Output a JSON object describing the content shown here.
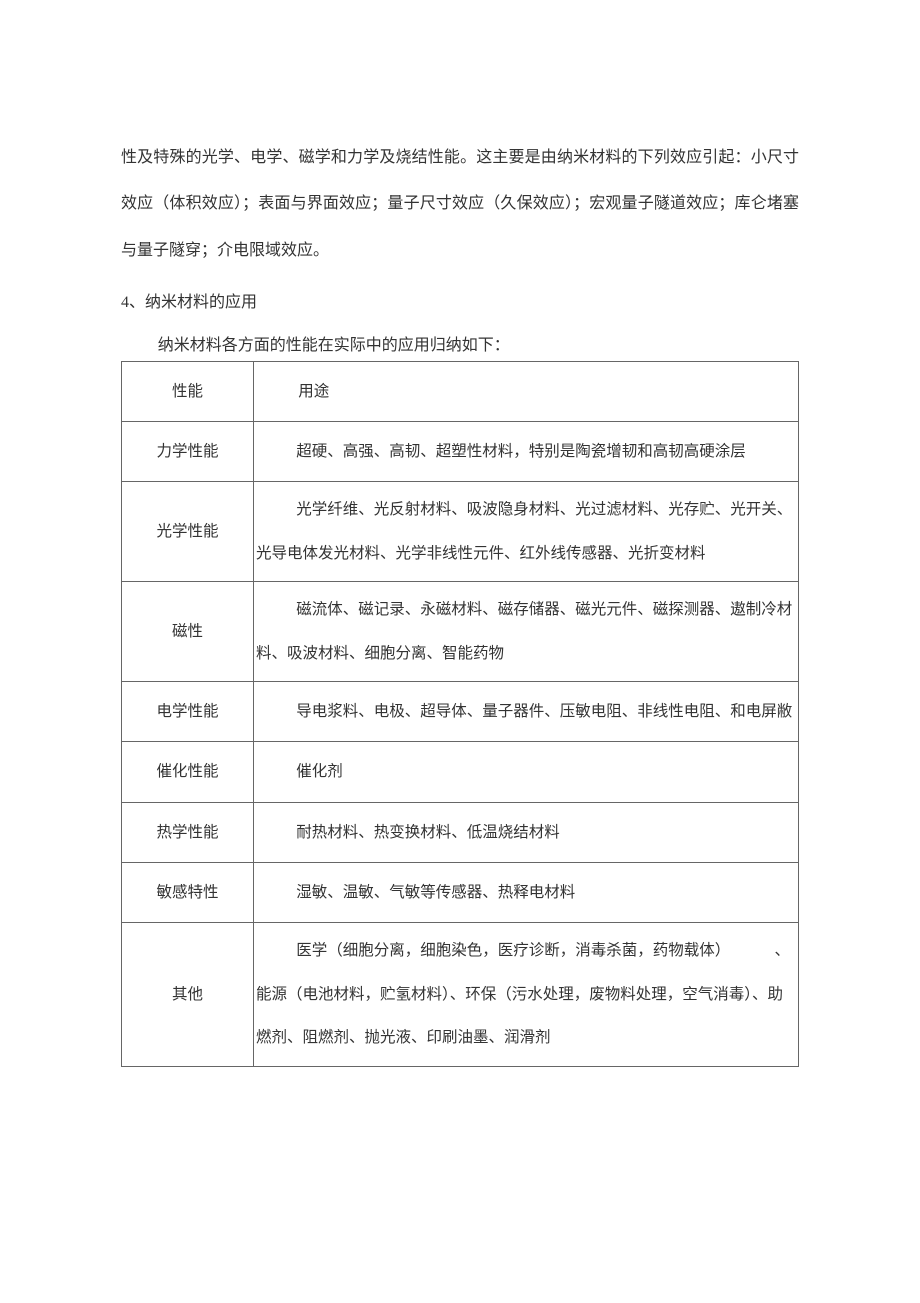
{
  "paragraph1": "性及特殊的光学、电学、磁学和力学及烧结性能。这主要是由纳米材料的下列效应引起：小尺寸效应（体积效应）；表面与界面效应；量子尺寸效应（久保效应）；宏观量子隧道效应；库仑堵塞与量子隧穿；介电限域效应。",
  "section_heading": "4、纳米材料的应用",
  "table_caption": "纳米材料各方面的性能在实际中的应用归纳如下：",
  "headers": {
    "col1": "性能",
    "col2": "用途"
  },
  "rows": [
    {
      "label": "力学性能",
      "usage": "超硬、高强、高韧、超塑性材料，特别是陶瓷增韧和高韧高硬涂层"
    },
    {
      "label": "光学性能",
      "usage": "光学纤维、光反射材料、吸波隐身材料、光过滤材料、光存贮、光开关、光导电体发光材料、光学非线性元件、红外线传感器、光折变材料"
    },
    {
      "label": "磁性",
      "usage": "磁流体、磁记录、永磁材料、磁存储器、磁光元件、磁探测器、遨制冷材料、吸波材料、细胞分离、智能药物"
    },
    {
      "label": "电学性能",
      "usage": "导电浆料、电极、超导体、量子器件、压敏电阻、非线性电阻、和电屏敝"
    },
    {
      "label": "催化性能",
      "usage": "催化剂"
    },
    {
      "label": "热学性能",
      "usage": "耐热材料、热变换材料、低温烧结材料"
    },
    {
      "label": "敏感特性",
      "usage": "湿敏、温敏、气敏等传感器、热释电材料"
    },
    {
      "label": "其他",
      "usage_line1": "医学（细胞分离，细胞染色，医疗诊断，消毒杀菌，药物载体）",
      "usage_trail": "、",
      "usage_line2": "能源（电池材料，贮氢材料）、环保（污水处理，废物料处理，空气消毒）、助燃剂、阻燃剂、抛光液、印刷油墨、润滑剂"
    }
  ],
  "colors": {
    "text": "#333333",
    "border": "#666666",
    "background": "#ffffff"
  },
  "typography": {
    "body_fontsize": 16,
    "table_fontsize": 15.5,
    "line_height": 2.8
  }
}
